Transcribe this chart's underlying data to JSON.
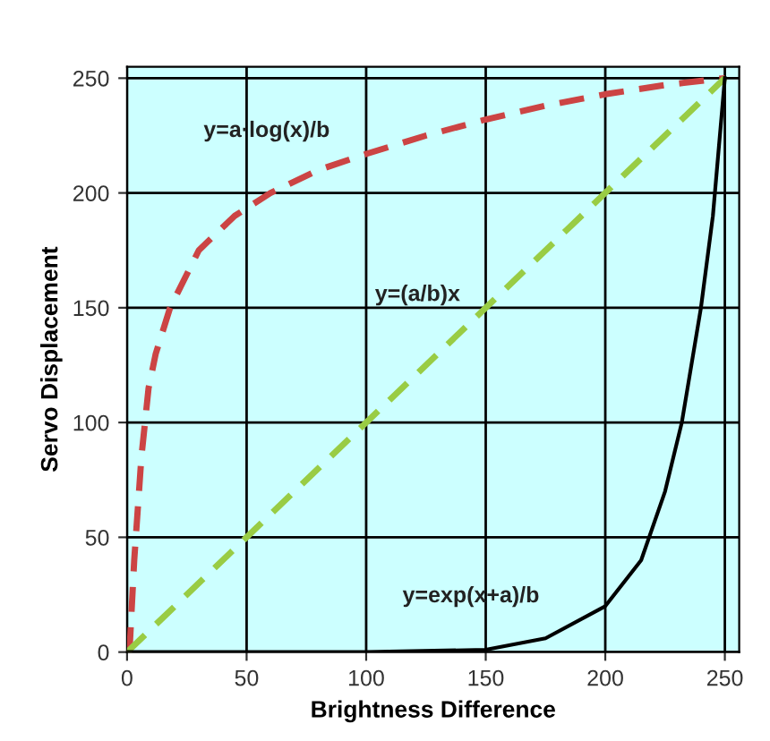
{
  "chart_data": {
    "type": "line",
    "xlabel": "Brightness Difference",
    "ylabel": "Servo Displacement",
    "xlim": [
      0,
      256
    ],
    "ylim": [
      0,
      255
    ],
    "xticks": [
      0,
      50,
      100,
      150,
      200,
      250
    ],
    "yticks": [
      0,
      50,
      100,
      150,
      200,
      250
    ],
    "grid": true,
    "legend": false,
    "marker": "none",
    "series": [
      {
        "color": "#cc4444",
        "line_style": "dashed",
        "x": [
          1,
          2,
          3,
          4,
          6,
          9,
          12,
          18,
          30,
          45,
          60,
          80,
          100,
          125,
          150,
          175,
          200,
          225,
          250
        ],
        "values": [
          0,
          20,
          40,
          55,
          85,
          115,
          130,
          150,
          175,
          190,
          200,
          210,
          217,
          225,
          232,
          238,
          243,
          247,
          250
        ]
      },
      {
        "color": "#99cc44",
        "line_style": "dashed",
        "x": [
          0,
          250
        ],
        "values": [
          0,
          250
        ]
      },
      {
        "color": "#000000",
        "line_style": "solid",
        "x": [
          0,
          100,
          150,
          175,
          200,
          215,
          225,
          232,
          240,
          245,
          250
        ],
        "values": [
          0,
          0,
          1,
          6,
          20,
          40,
          70,
          100,
          150,
          190,
          250
        ]
      }
    ],
    "annotations": [
      "y=a·log(x)/b",
      "y=(a/b)x",
      "y=exp(x+a)/b"
    ]
  }
}
